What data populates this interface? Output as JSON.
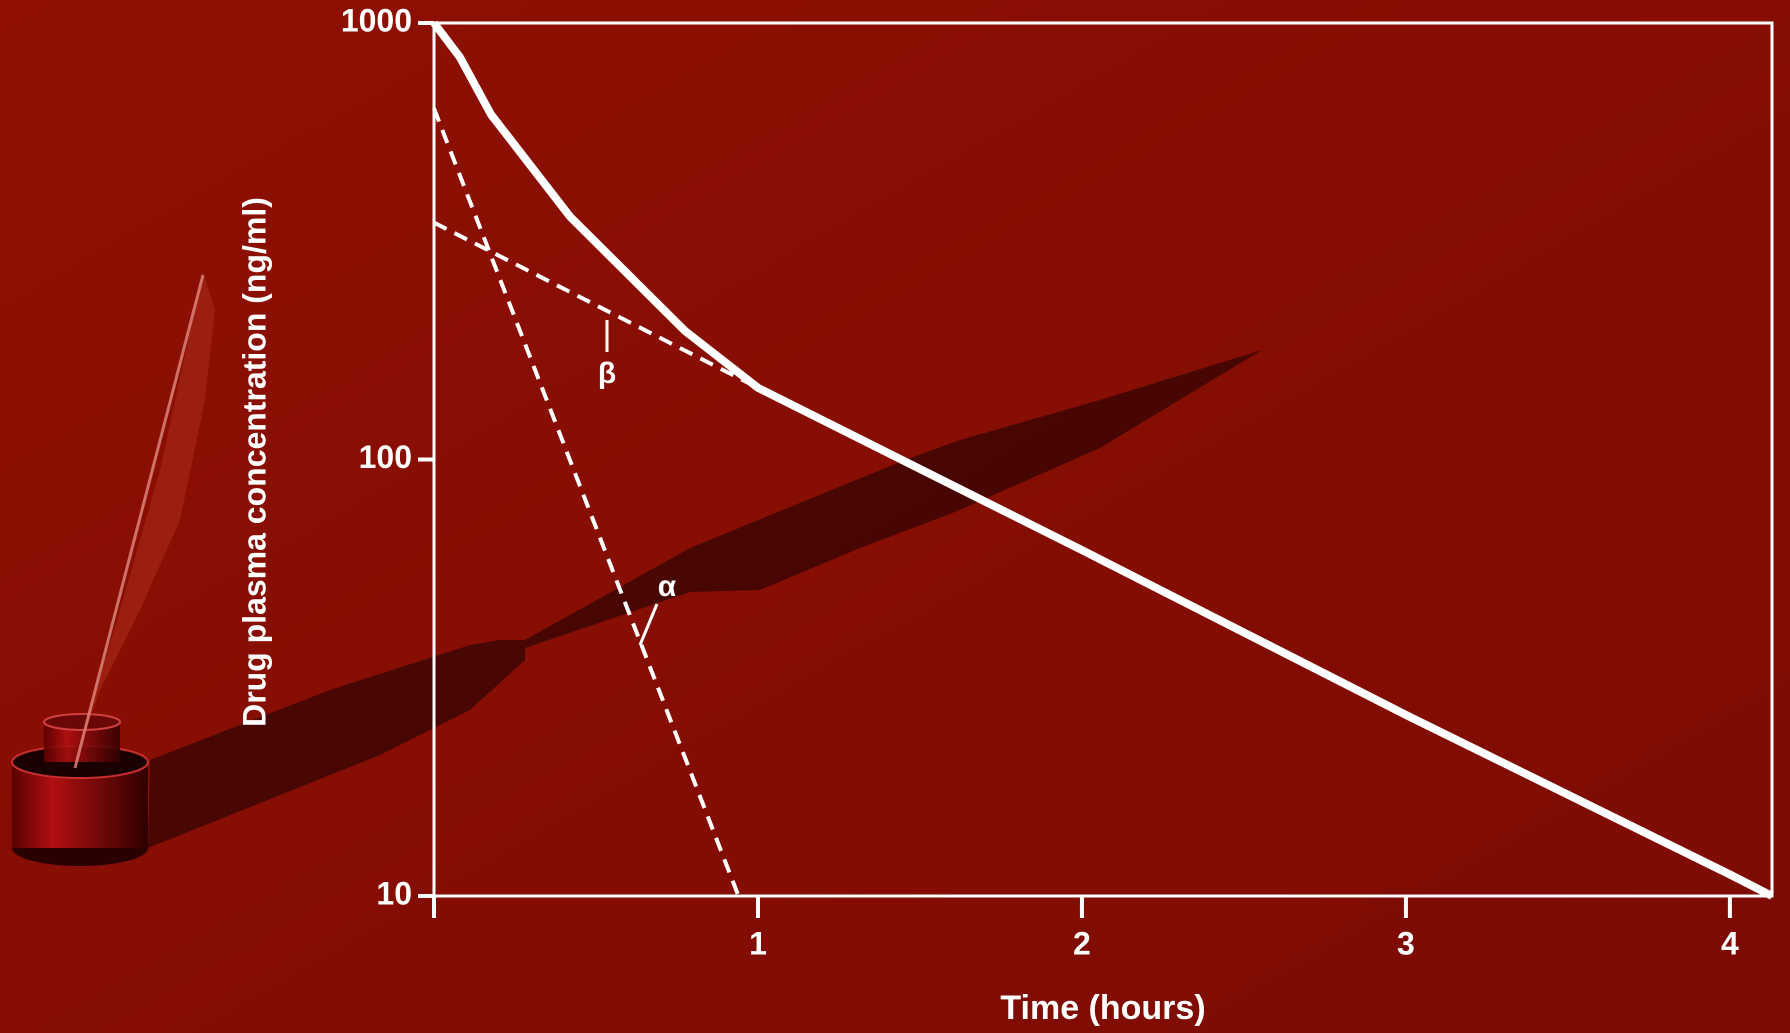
{
  "chart_data": {
    "type": "line",
    "xlabel": "Time (hours)",
    "ylabel": "Drug plasma concentration (ng/ml)",
    "xlim": [
      0,
      4.13
    ],
    "xticks": [
      1,
      2,
      3,
      4
    ],
    "ylim": [
      10,
      1000
    ],
    "yticks": [
      10,
      100,
      1000
    ],
    "yscale": "log",
    "grid": false,
    "series": [
      {
        "color": "#ffffff",
        "style": "solid",
        "x": [
          0,
          0.08,
          0.176,
          0.42,
          0.775,
          1.0,
          2,
          3,
          4,
          4.13
        ],
        "values": [
          1000,
          835,
          617,
          360,
          197,
          146,
          62,
          26,
          11.2,
          10
        ]
      },
      {
        "color": "#ffffff",
        "style": "dashed",
        "x": [
          0,
          1.0
        ],
        "values": [
          349,
          146
        ]
      },
      {
        "color": "#ffffff",
        "style": "dashed",
        "x": [
          0,
          0.94
        ],
        "values": [
          637,
          10
        ]
      }
    ],
    "annotations": [
      "β",
      "α"
    ]
  }
}
